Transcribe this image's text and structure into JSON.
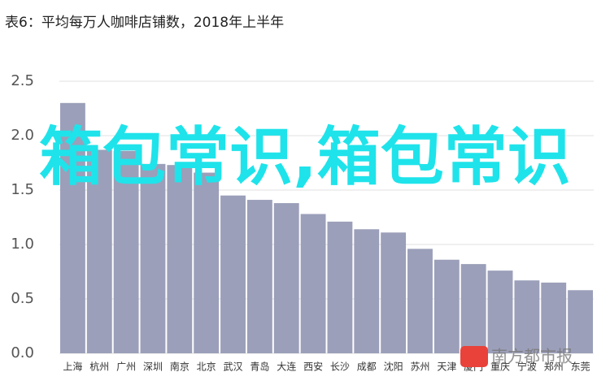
{
  "chart_data": {
    "type": "bar",
    "title": "表6：平均每万人咖啡店铺数，2018年上半年",
    "categories": [
      "上海",
      "杭州",
      "广州",
      "深圳",
      "南京",
      "北京",
      "武汉",
      "青岛",
      "大连",
      "西安",
      "长沙",
      "成都",
      "沈阳",
      "苏州",
      "天津",
      "厦门",
      "重庆",
      "宁波",
      "郑州",
      "东莞"
    ],
    "values": [
      2.3,
      1.87,
      1.86,
      1.74,
      1.73,
      1.66,
      1.45,
      1.41,
      1.38,
      1.28,
      1.21,
      1.14,
      1.11,
      0.96,
      0.86,
      0.82,
      0.76,
      0.67,
      0.65,
      0.58
    ],
    "color": "#9b9fb9",
    "ylim": [
      0,
      2.5
    ],
    "yticks": [
      {
        "value": 0,
        "label": "0.0"
      },
      {
        "value": 0.5,
        "label": "0.5"
      },
      {
        "value": 1,
        "label": "1.0"
      },
      {
        "value": 1.5,
        "label": "1.5"
      },
      {
        "value": 2,
        "label": "2.0"
      },
      {
        "value": 2.5,
        "label": "2.5"
      }
    ],
    "grid": true,
    "watermark": "箱包常识,箱包常识",
    "source": "南方都市报"
  }
}
